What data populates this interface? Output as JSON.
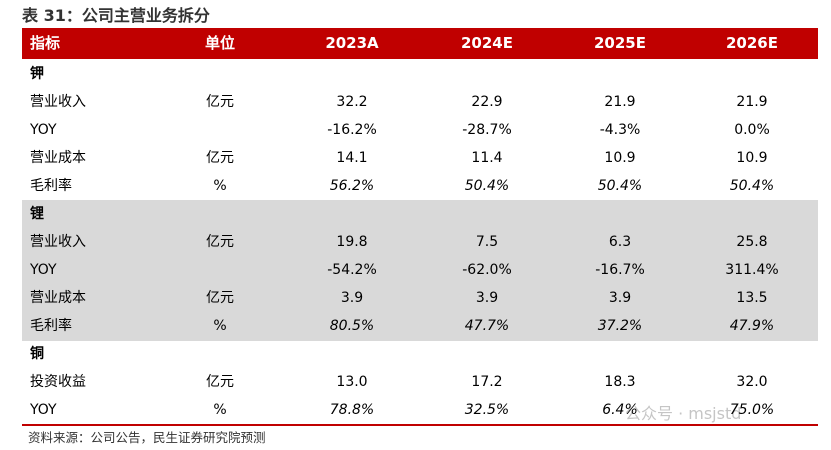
{
  "title": "表 31：公司主营业务拆分",
  "table": {
    "header": [
      "指标",
      "单位",
      "2023A",
      "2024E",
      "2025E",
      "2026E"
    ],
    "sections": [
      {
        "name": "钾",
        "shaded": false,
        "rows": [
          {
            "cells": [
              "营业收入",
              "亿元",
              "32.2",
              "22.9",
              "21.9",
              "21.9"
            ],
            "italic": false
          },
          {
            "cells": [
              "YOY",
              "",
              "-16.2%",
              "-28.7%",
              "-4.3%",
              "0.0%"
            ],
            "italic": false
          },
          {
            "cells": [
              "营业成本",
              "亿元",
              "14.1",
              "11.4",
              "10.9",
              "10.9"
            ],
            "italic": false
          },
          {
            "cells": [
              "毛利率",
              "%",
              "56.2%",
              "50.4%",
              "50.4%",
              "50.4%"
            ],
            "italic": true
          }
        ]
      },
      {
        "name": "锂",
        "shaded": true,
        "rows": [
          {
            "cells": [
              "营业收入",
              "亿元",
              "19.8",
              "7.5",
              "6.3",
              "25.8"
            ],
            "italic": false
          },
          {
            "cells": [
              "YOY",
              "",
              "-54.2%",
              "-62.0%",
              "-16.7%",
              "311.4%"
            ],
            "italic": false
          },
          {
            "cells": [
              "营业成本",
              "亿元",
              "3.9",
              "3.9",
              "3.9",
              "13.5"
            ],
            "italic": false
          },
          {
            "cells": [
              "毛利率",
              "%",
              "80.5%",
              "47.7%",
              "37.2%",
              "47.9%"
            ],
            "italic": true
          }
        ]
      },
      {
        "name": "铜",
        "shaded": false,
        "rows": [
          {
            "cells": [
              "投资收益",
              "亿元",
              "13.0",
              "17.2",
              "18.3",
              "32.0"
            ],
            "italic": false
          },
          {
            "cells": [
              "YOY",
              "%",
              "78.8%",
              "32.5%",
              "6.4%",
              "75.0%"
            ],
            "italic": true
          }
        ]
      }
    ]
  },
  "source": "资料来源：公司公告，民生证券研究院预测",
  "watermark": "公众号 · msjstd"
}
